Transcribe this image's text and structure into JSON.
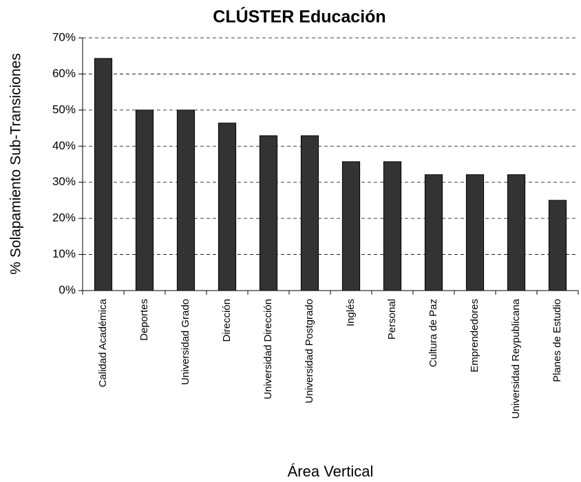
{
  "chart_data": {
    "type": "bar",
    "title": "CLÚSTER Educación",
    "x_label": "Área Vertical",
    "y_label": "% Solapamiento Sub-Transiciones",
    "categories": [
      "Calidad Académica",
      "Deportes",
      "Universidad Grado",
      "Dirección",
      "Universidad Dirección",
      "Universidad Postgrado",
      "Inglés",
      "Personal",
      "Cultura de Paz",
      "Emprendedores",
      "Universidad Reypublicana",
      "Planes de Estudio"
    ],
    "values": [
      64.3,
      50,
      50,
      46.4,
      42.9,
      42.9,
      35.7,
      35.7,
      32.1,
      32.1,
      32.1,
      25
    ],
    "color": "#333333",
    "ylim": [
      0,
      70
    ],
    "yticks": [
      {
        "value": 0,
        "label": "0%"
      },
      {
        "value": 10,
        "label": "10%"
      },
      {
        "value": 20,
        "label": "20%"
      },
      {
        "value": 30,
        "label": "30%"
      },
      {
        "value": 40,
        "label": "40%"
      },
      {
        "value": 50,
        "label": "50%"
      },
      {
        "value": 60,
        "label": "60%"
      },
      {
        "value": 70,
        "label": "70%"
      }
    ],
    "grid": true
  }
}
